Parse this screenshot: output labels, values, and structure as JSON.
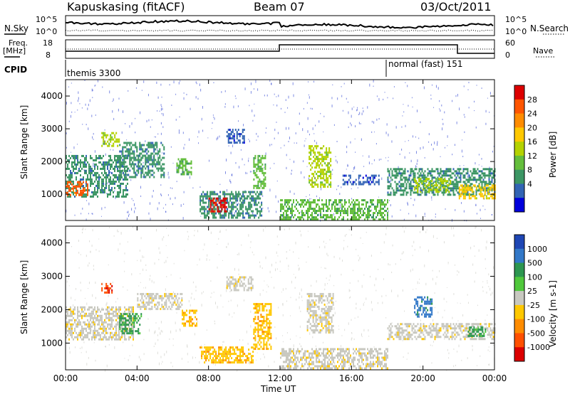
{
  "header": {
    "title": "Kapuskasing (fitACF)",
    "beam": "Beam 07",
    "date": "03/Oct/2011"
  },
  "status_panels": {
    "nsky_label": "N.Sky",
    "nsearch_label": "N.Search",
    "noise_ticks": [
      "10^5",
      "10^0"
    ],
    "freq_label_1": "Freq.",
    "freq_label_2": "[MHz]",
    "freq_ticks": [
      "18",
      "8"
    ],
    "nave_ticks": [
      "60",
      "0"
    ],
    "nave_label": "Nave",
    "cpid_label": "CPID",
    "cpid_1": "themis 3300",
    "cpid_2": "normal (fast) 151"
  },
  "chart_data": [
    {
      "type": "heatmap",
      "name": "power-panel",
      "ylabel": "Slant Range [km]",
      "xlabel": "Time UT",
      "x_ticks": [
        "00:00",
        "04:00",
        "08:00",
        "12:00",
        "16:00",
        "20:00",
        "00:00"
      ],
      "y_ticks": [
        1000,
        2000,
        3000,
        4000
      ],
      "ylim": [
        200,
        4500
      ],
      "xlim_hours": [
        0,
        24
      ],
      "colorbar": {
        "label": "Power [dB]",
        "ticks": [
          "28",
          "24",
          "20",
          "16",
          "12",
          "8",
          "4"
        ],
        "colors": [
          "#dd0000",
          "#ff5500",
          "#ff8c00",
          "#ffc800",
          "#b4d200",
          "#64be3c",
          "#3c9664",
          "#3264b4",
          "#0000dc"
        ]
      },
      "regions": [
        {
          "t0": 0.0,
          "t1": 3.5,
          "r0": 900,
          "r1": 2200,
          "level": 2
        },
        {
          "t0": 0.0,
          "t1": 1.2,
          "r0": 1000,
          "r1": 1400,
          "level": 7
        },
        {
          "t0": 2.0,
          "t1": 3.0,
          "r0": 2500,
          "r1": 2900,
          "level": 4
        },
        {
          "t0": 3.0,
          "t1": 5.5,
          "r0": 1500,
          "r1": 2600,
          "level": 2
        },
        {
          "t0": 6.2,
          "t1": 7.0,
          "r0": 1600,
          "r1": 2100,
          "level": 3
        },
        {
          "t0": 7.5,
          "t1": 11.0,
          "r0": 300,
          "r1": 1100,
          "level": 2
        },
        {
          "t0": 8.0,
          "t1": 9.0,
          "r0": 500,
          "r1": 900,
          "level": 8
        },
        {
          "t0": 9.0,
          "t1": 10.0,
          "r0": 2600,
          "r1": 3000,
          "level": 1
        },
        {
          "t0": 10.5,
          "t1": 11.2,
          "r0": 1200,
          "r1": 2200,
          "level": 3
        },
        {
          "t0": 12.0,
          "t1": 18.0,
          "r0": 250,
          "r1": 850,
          "level": 3
        },
        {
          "t0": 13.6,
          "t1": 14.8,
          "r0": 1200,
          "r1": 2500,
          "level": 4
        },
        {
          "t0": 15.5,
          "t1": 17.5,
          "r0": 1300,
          "r1": 1600,
          "level": 1
        },
        {
          "t0": 18.0,
          "t1": 24.0,
          "r0": 1000,
          "r1": 1800,
          "level": 2
        },
        {
          "t0": 19.5,
          "t1": 21.5,
          "r0": 1100,
          "r1": 1500,
          "level": 4
        },
        {
          "t0": 22.0,
          "t1": 24.0,
          "r0": 900,
          "r1": 1300,
          "level": 5
        }
      ]
    },
    {
      "type": "heatmap",
      "name": "velocity-panel",
      "ylabel": "Slant Range [km]",
      "xlabel": "Time UT",
      "x_ticks": [
        "00:00",
        "04:00",
        "08:00",
        "12:00",
        "16:00",
        "20:00",
        "00:00"
      ],
      "y_ticks": [
        1000,
        2000,
        3000,
        4000
      ],
      "ylim": [
        200,
        4500
      ],
      "xlim_hours": [
        0,
        24
      ],
      "colorbar": {
        "label": "Velocity [m s-1]",
        "ticks": [
          "1000",
          "500",
          "100",
          "25",
          "-25",
          "-100",
          "-500",
          "-1000"
        ],
        "colors": [
          "#1e46b4",
          "#3278c8",
          "#2d9650",
          "#50c83c",
          "#c8c8c0",
          "#ffc800",
          "#ff8c00",
          "#ff5000",
          "#dc0000"
        ]
      },
      "regions": [
        {
          "t0": 0.0,
          "t1": 3.8,
          "r0": 1100,
          "r1": 2100,
          "level": 4
        },
        {
          "t0": 2.0,
          "t1": 2.6,
          "r0": 2500,
          "r1": 2800,
          "level": 1
        },
        {
          "t0": 3.0,
          "t1": 4.2,
          "r0": 1300,
          "r1": 1900,
          "level": 6
        },
        {
          "t0": 4.0,
          "t1": 6.5,
          "r0": 2000,
          "r1": 2500,
          "level": 4
        },
        {
          "t0": 6.5,
          "t1": 7.3,
          "r0": 1500,
          "r1": 2000,
          "level": 3
        },
        {
          "t0": 7.5,
          "t1": 10.5,
          "r0": 400,
          "r1": 900,
          "level": 3
        },
        {
          "t0": 9.0,
          "t1": 10.5,
          "r0": 2600,
          "r1": 3000,
          "level": 4
        },
        {
          "t0": 10.5,
          "t1": 11.5,
          "r0": 800,
          "r1": 2200,
          "level": 3
        },
        {
          "t0": 12.0,
          "t1": 18.0,
          "r0": 250,
          "r1": 850,
          "level": 4
        },
        {
          "t0": 13.5,
          "t1": 15.0,
          "r0": 1300,
          "r1": 2500,
          "level": 4
        },
        {
          "t0": 18.0,
          "t1": 24.0,
          "r0": 1100,
          "r1": 1600,
          "level": 4
        },
        {
          "t0": 22.5,
          "t1": 23.5,
          "r0": 1200,
          "r1": 1500,
          "level": 6
        },
        {
          "t0": 19.5,
          "t1": 20.5,
          "r0": 1800,
          "r1": 2400,
          "level": 7
        }
      ]
    }
  ]
}
